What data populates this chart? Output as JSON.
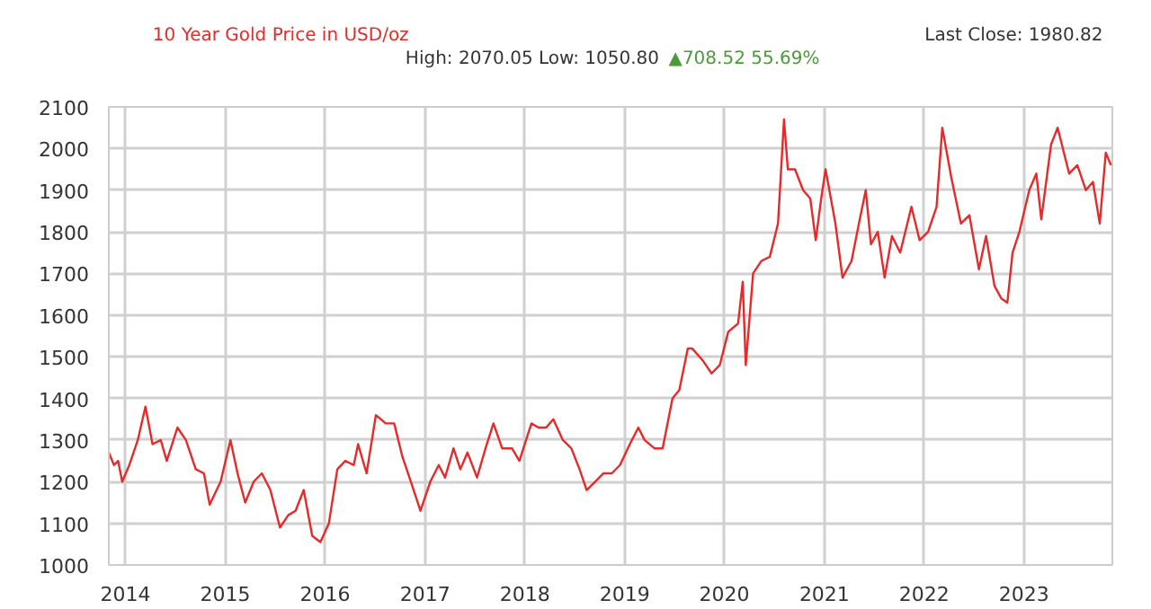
{
  "chart_data": {
    "type": "line",
    "title": "10 Year Gold Price in USD/oz",
    "subtitle": "High: 2070.05 Low: 1050.80",
    "annotations": [
      "▲708.52 55.69%",
      "Last Close: 1980.82"
    ],
    "x": [
      "2013-11-01",
      "2013-11-20",
      "2013-12-05",
      "2013-12-20",
      "2014-01-15",
      "2014-02-15",
      "2014-03-15",
      "2014-04-10",
      "2014-05-10",
      "2014-06-01",
      "2014-07-10",
      "2014-08-10",
      "2014-09-15",
      "2014-10-15",
      "2014-11-05",
      "2014-12-15",
      "2015-01-20",
      "2015-02-15",
      "2015-03-15",
      "2015-04-15",
      "2015-05-15",
      "2015-06-15",
      "2015-07-20",
      "2015-08-20",
      "2015-09-15",
      "2015-10-15",
      "2015-11-15",
      "2015-12-15",
      "2016-01-15",
      "2016-02-15",
      "2016-03-15",
      "2016-04-15",
      "2016-05-01",
      "2016-06-01",
      "2016-07-05",
      "2016-08-10",
      "2016-09-10",
      "2016-10-10",
      "2016-11-10",
      "2016-12-15",
      "2017-01-20",
      "2017-02-20",
      "2017-03-15",
      "2017-04-15",
      "2017-05-10",
      "2017-06-05",
      "2017-07-10",
      "2017-08-10",
      "2017-09-08",
      "2017-10-10",
      "2017-11-15",
      "2017-12-12",
      "2018-01-25",
      "2018-02-20",
      "2018-03-20",
      "2018-04-15",
      "2018-05-20",
      "2018-06-20",
      "2018-07-20",
      "2018-08-15",
      "2018-09-15",
      "2018-10-15",
      "2018-11-15",
      "2018-12-15",
      "2019-01-20",
      "2019-02-20",
      "2019-03-15",
      "2019-04-20",
      "2019-05-20",
      "2019-06-25",
      "2019-07-20",
      "2019-08-20",
      "2019-09-05",
      "2019-10-15",
      "2019-11-15",
      "2019-12-15",
      "2020-01-15",
      "2020-02-20",
      "2020-03-08",
      "2020-03-19",
      "2020-04-15",
      "2020-05-15",
      "2020-06-15",
      "2020-07-15",
      "2020-08-06",
      "2020-08-20",
      "2020-09-15",
      "2020-10-15",
      "2020-11-10",
      "2020-11-30",
      "2020-12-20",
      "2021-01-05",
      "2021-02-10",
      "2021-03-08",
      "2021-04-10",
      "2021-05-10",
      "2021-06-01",
      "2021-06-20",
      "2021-07-15",
      "2021-08-09",
      "2021-09-05",
      "2021-10-05",
      "2021-11-15",
      "2021-12-15",
      "2022-01-15",
      "2022-02-15",
      "2022-03-08",
      "2022-04-10",
      "2022-05-15",
      "2022-06-15",
      "2022-07-20",
      "2022-08-15",
      "2022-09-15",
      "2022-10-10",
      "2022-11-01",
      "2022-11-20",
      "2022-12-15",
      "2023-01-20",
      "2023-02-15",
      "2023-03-05",
      "2023-04-10",
      "2023-05-04",
      "2023-06-15",
      "2023-07-15",
      "2023-08-15",
      "2023-09-10",
      "2023-10-05",
      "2023-10-27",
      "2023-11-15"
    ],
    "values": [
      1270,
      1240,
      1250,
      1200,
      1240,
      1300,
      1380,
      1290,
      1300,
      1250,
      1330,
      1300,
      1230,
      1220,
      1145,
      1200,
      1300,
      1220,
      1150,
      1200,
      1220,
      1180,
      1090,
      1120,
      1130,
      1180,
      1070,
      1055,
      1100,
      1230,
      1250,
      1240,
      1290,
      1220,
      1360,
      1340,
      1340,
      1260,
      1200,
      1130,
      1200,
      1240,
      1210,
      1280,
      1230,
      1270,
      1210,
      1280,
      1340,
      1280,
      1280,
      1250,
      1340,
      1330,
      1330,
      1350,
      1300,
      1280,
      1230,
      1180,
      1200,
      1220,
      1220,
      1240,
      1290,
      1330,
      1300,
      1280,
      1280,
      1400,
      1420,
      1520,
      1520,
      1490,
      1460,
      1480,
      1560,
      1580,
      1680,
      1480,
      1700,
      1730,
      1740,
      1820,
      2070,
      1950,
      1950,
      1900,
      1880,
      1780,
      1880,
      1950,
      1820,
      1690,
      1730,
      1830,
      1900,
      1770,
      1800,
      1690,
      1790,
      1750,
      1860,
      1780,
      1800,
      1860,
      2050,
      1930,
      1820,
      1840,
      1710,
      1790,
      1670,
      1640,
      1630,
      1750,
      1800,
      1900,
      1940,
      1830,
      2010,
      2050,
      1940,
      1960,
      1900,
      1920,
      1820,
      1990,
      1960
    ],
    "color": "#e8292a",
    "xlim": [
      "2013-11-01",
      "2023-11-20"
    ],
    "xticks": [
      "2014",
      "2015",
      "2016",
      "2017",
      "2018",
      "2019",
      "2020",
      "2021",
      "2022",
      "2023"
    ],
    "ylim": [
      1000,
      2100
    ],
    "yticks": [
      1000,
      1100,
      1200,
      1300,
      1400,
      1500,
      1600,
      1700,
      1800,
      1900,
      2000,
      2100
    ],
    "grid": true
  }
}
